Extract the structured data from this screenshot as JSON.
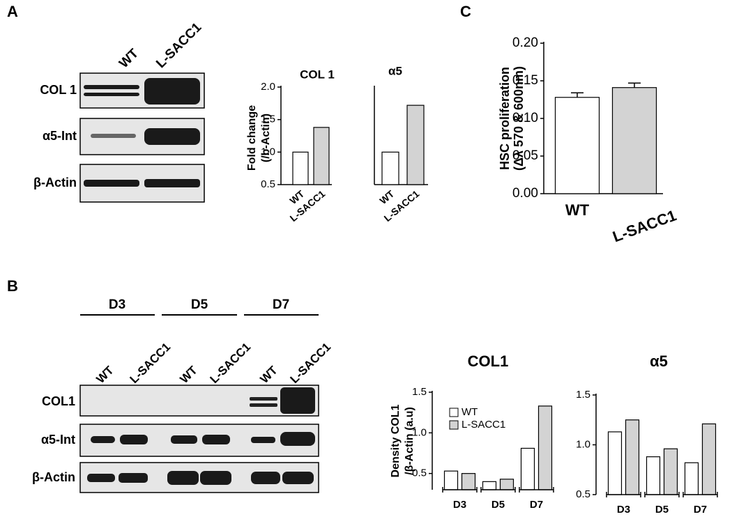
{
  "panels": {
    "a": "A",
    "b": "B",
    "c": "C"
  },
  "blot_a": {
    "lanes": [
      "WT",
      "L-SACC1"
    ],
    "rows": [
      "COL 1",
      "α5-Int",
      "β-Actin"
    ]
  },
  "blot_b": {
    "groups": [
      "D3",
      "D5",
      "D7"
    ],
    "lanes": [
      "WT",
      "L-SACC1",
      "WT",
      "L-SACC1",
      "WT",
      "L-SACC1"
    ],
    "rows": [
      "COL1",
      "α5-Int",
      "β-Actin"
    ]
  },
  "chart_data": [
    {
      "type": "bar",
      "title": "COL 1",
      "ylabel": [
        "Fold change",
        "(/b-Actin)"
      ],
      "categories": [
        "WT",
        "L-SACC1"
      ],
      "values": [
        1.0,
        1.38
      ],
      "colors": [
        "#ffffff",
        "#d3d3d3"
      ],
      "ylim": [
        0.5,
        2.0
      ],
      "yticks": [
        0.5,
        {
          "value": 1,
          "label": "1.0"
        },
        1.5,
        {
          "value": 2,
          "label": "2.0"
        }
      ]
    },
    {
      "type": "bar",
      "title": "α5",
      "categories": [
        "WT",
        "L-SACC1"
      ],
      "values": [
        1.0,
        1.72
      ],
      "colors": [
        "#ffffff",
        "#d3d3d3"
      ],
      "ylim": [
        0.5,
        2.0
      ]
    },
    {
      "type": "bar",
      "ylabel": [
        "HSC proliferation",
        "(Δλ 570 & 600nm)"
      ],
      "categories": [
        "WT",
        "L-SACC1"
      ],
      "values": [
        0.128,
        0.141
      ],
      "errors": [
        0.006,
        0.006
      ],
      "colors": [
        "#ffffff",
        "#d3d3d3"
      ],
      "ylim": [
        0,
        0.2
      ],
      "yticks": [
        {
          "value": 0,
          "label": "0.00"
        },
        {
          "value": 0.05,
          "label": "0.05"
        },
        {
          "value": 0.1,
          "label": "0.10"
        },
        {
          "value": 0.15,
          "label": "0.15"
        },
        {
          "value": 0.2,
          "label": "0.20"
        }
      ]
    },
    {
      "type": "bar",
      "title": "COL1",
      "ylabel": [
        "Density COL1",
        "/β-Actin (a.u)"
      ],
      "categories": [
        "D3",
        "D5",
        "D7"
      ],
      "series": [
        {
          "name": "WT",
          "color": "#ffffff",
          "values": [
            0.53,
            0.4,
            0.81
          ]
        },
        {
          "name": "L-SACC1",
          "color": "#d3d3d3",
          "values": [
            0.5,
            0.43,
            1.33
          ]
        }
      ],
      "ylim": [
        0.3,
        1.5
      ],
      "yticks": [
        0.5,
        {
          "value": 1,
          "label": "1.0"
        },
        1.5
      ],
      "legend": "upper left"
    },
    {
      "type": "bar",
      "title": "α5",
      "categories": [
        "D3",
        "D5",
        "D7"
      ],
      "series": [
        {
          "name": "WT",
          "color": "#ffffff",
          "values": [
            1.13,
            0.88,
            0.82
          ]
        },
        {
          "name": "L-SACC1",
          "color": "#d3d3d3",
          "values": [
            1.25,
            0.96,
            1.21
          ]
        }
      ],
      "ylim": [
        0.5,
        1.5
      ],
      "yticks": [
        0.5,
        {
          "value": 1,
          "label": "1.0"
        },
        1.5
      ]
    }
  ]
}
